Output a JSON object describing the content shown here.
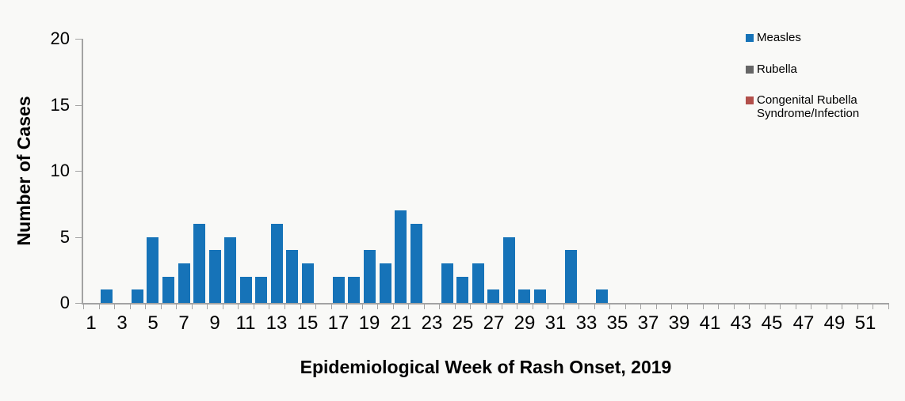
{
  "colors": {
    "measles": "#1673b8",
    "rubella": "#666666",
    "congenital_rubella": "#b24f4a",
    "axis": "#a3a3a3",
    "background": "#f9f9f7",
    "text": "#000000"
  },
  "chart_data": {
    "type": "bar",
    "title": "",
    "xlabel": "Epidemiological Week of Rash Onset, 2019",
    "ylabel": "Number of Cases",
    "x": [
      1,
      2,
      3,
      4,
      5,
      6,
      7,
      8,
      9,
      10,
      11,
      12,
      13,
      14,
      15,
      16,
      17,
      18,
      19,
      20,
      21,
      22,
      23,
      24,
      25,
      26,
      27,
      28,
      29,
      30,
      31,
      32,
      33,
      34,
      35,
      36,
      37,
      38,
      39,
      40,
      41,
      42,
      43,
      44,
      45,
      46,
      47,
      48,
      49,
      50,
      51,
      52
    ],
    "series": [
      {
        "name": "Measles",
        "color": "#1673b8",
        "values": [
          0,
          1,
          0,
          1,
          5,
          2,
          3,
          6,
          4,
          5,
          2,
          2,
          6,
          4,
          3,
          0,
          2,
          2,
          4,
          3,
          7,
          6,
          0,
          3,
          2,
          3,
          1,
          5,
          1,
          1,
          0,
          4,
          0,
          1,
          0,
          0,
          0,
          0,
          0,
          0,
          0,
          0,
          0,
          0,
          0,
          0,
          0,
          0,
          0,
          0,
          0,
          0
        ]
      },
      {
        "name": "Rubella",
        "color": "#666666",
        "values": [
          0,
          0,
          0,
          0,
          0,
          0,
          0,
          0,
          0,
          0,
          0,
          0,
          0,
          0,
          0,
          0,
          0,
          0,
          0,
          0,
          0,
          0,
          0,
          0,
          0,
          0,
          0,
          0,
          0,
          0,
          0,
          0,
          0,
          0,
          0,
          0,
          0,
          0,
          0,
          0,
          0,
          0,
          0,
          0,
          0,
          0,
          0,
          0,
          0,
          0,
          0,
          0
        ]
      },
      {
        "name": "Congenital Rubella Syndrome/Infection",
        "color": "#b24f4a",
        "values": [
          0,
          0,
          0,
          0,
          0,
          0,
          0,
          0,
          0,
          0,
          0,
          0,
          0,
          0,
          0,
          0,
          0,
          0,
          0,
          0,
          0,
          0,
          0,
          0,
          0,
          0,
          0,
          0,
          0,
          0,
          0,
          0,
          0,
          0,
          0,
          0,
          0,
          0,
          0,
          0,
          0,
          0,
          0,
          0,
          0,
          0,
          0,
          0,
          0,
          0,
          0,
          0
        ]
      }
    ],
    "ylim": [
      0,
      20
    ],
    "yticks": [
      0,
      5,
      10,
      15,
      20
    ],
    "xticks_labeled": [
      1,
      3,
      5,
      7,
      9,
      11,
      13,
      15,
      17,
      19,
      21,
      23,
      25,
      27,
      29,
      31,
      33,
      35,
      37,
      39,
      41,
      43,
      45,
      47,
      49,
      51
    ],
    "grid": false,
    "legend_position": "top-right"
  }
}
